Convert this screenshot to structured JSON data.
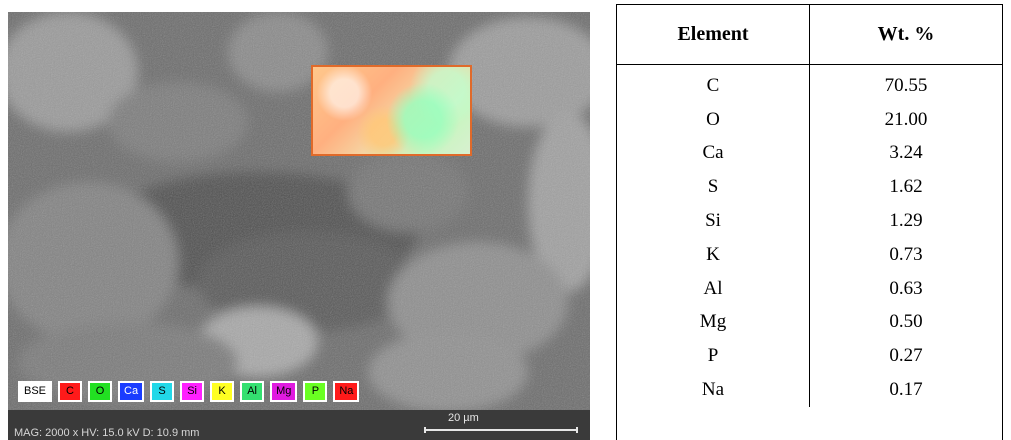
{
  "sem": {
    "legend": [
      {
        "label": "BSE",
        "bg": "#ffffff",
        "fg": "#000000"
      },
      {
        "label": "C",
        "bg": "#ff1a1a",
        "fg": "#000000"
      },
      {
        "label": "O",
        "bg": "#22e022",
        "fg": "#000000"
      },
      {
        "label": "Ca",
        "bg": "#1a3cff",
        "fg": "#ffffff"
      },
      {
        "label": "S",
        "bg": "#22d8e8",
        "fg": "#000000"
      },
      {
        "label": "Si",
        "bg": "#ff20ff",
        "fg": "#000000"
      },
      {
        "label": "K",
        "bg": "#ffff22",
        "fg": "#000000"
      },
      {
        "label": "Al",
        "bg": "#33e070",
        "fg": "#000000"
      },
      {
        "label": "Mg",
        "bg": "#e01ae0",
        "fg": "#000000"
      },
      {
        "label": "P",
        "bg": "#6aff22",
        "fg": "#000000"
      },
      {
        "label": "Na",
        "bg": "#ff1a1a",
        "fg": "#000000"
      }
    ],
    "status": "MAG: 2000 x    HV: 15.0 kV    D: 10.9 mm",
    "scale_label": "20 µm",
    "roi_color": "#e06a2a"
  },
  "table": {
    "headers": [
      "Element",
      "Wt. %"
    ],
    "rows": [
      [
        "C",
        "70.55"
      ],
      [
        "O",
        "21.00"
      ],
      [
        "Ca",
        "3.24"
      ],
      [
        "S",
        "1.62"
      ],
      [
        "Si",
        "1.29"
      ],
      [
        "K",
        "0.73"
      ],
      [
        "Al",
        "0.63"
      ],
      [
        "Mg",
        "0.50"
      ],
      [
        "P",
        "0.27"
      ],
      [
        "Na",
        "0.17"
      ]
    ]
  }
}
